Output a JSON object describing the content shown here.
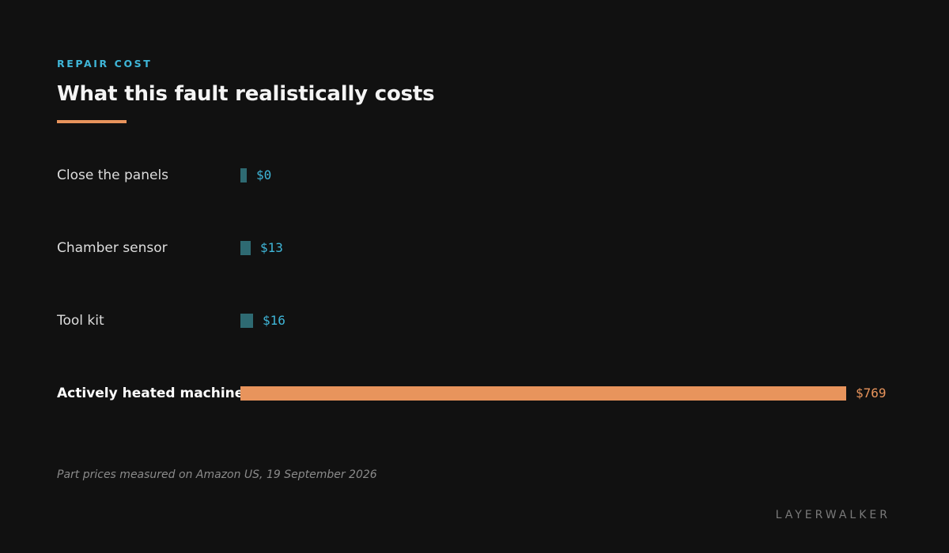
{
  "header": {
    "eyebrow": "REPAIR COST",
    "title": "What this fault realistically costs"
  },
  "chart_data": {
    "type": "bar",
    "orientation": "horizontal",
    "categories": [
      "Close the panels",
      "Chamber sensor",
      "Tool kit",
      "Actively heated machine"
    ],
    "values": [
      0,
      13,
      16,
      769
    ],
    "value_labels": [
      "$0",
      "$13",
      "$16",
      "$769"
    ],
    "highlighted_category": "Actively heated machine",
    "unit": "$",
    "xlim": [
      0,
      769
    ],
    "grid": false,
    "legend": "none"
  },
  "colors": {
    "accent": "#3fb6d8",
    "highlight": "#e8945c",
    "bar": "#2e6a72",
    "background": "#111111"
  },
  "footer": {
    "note": "Part prices measured on Amazon US, 19 September 2026",
    "brand": "LAYERWALKER"
  }
}
